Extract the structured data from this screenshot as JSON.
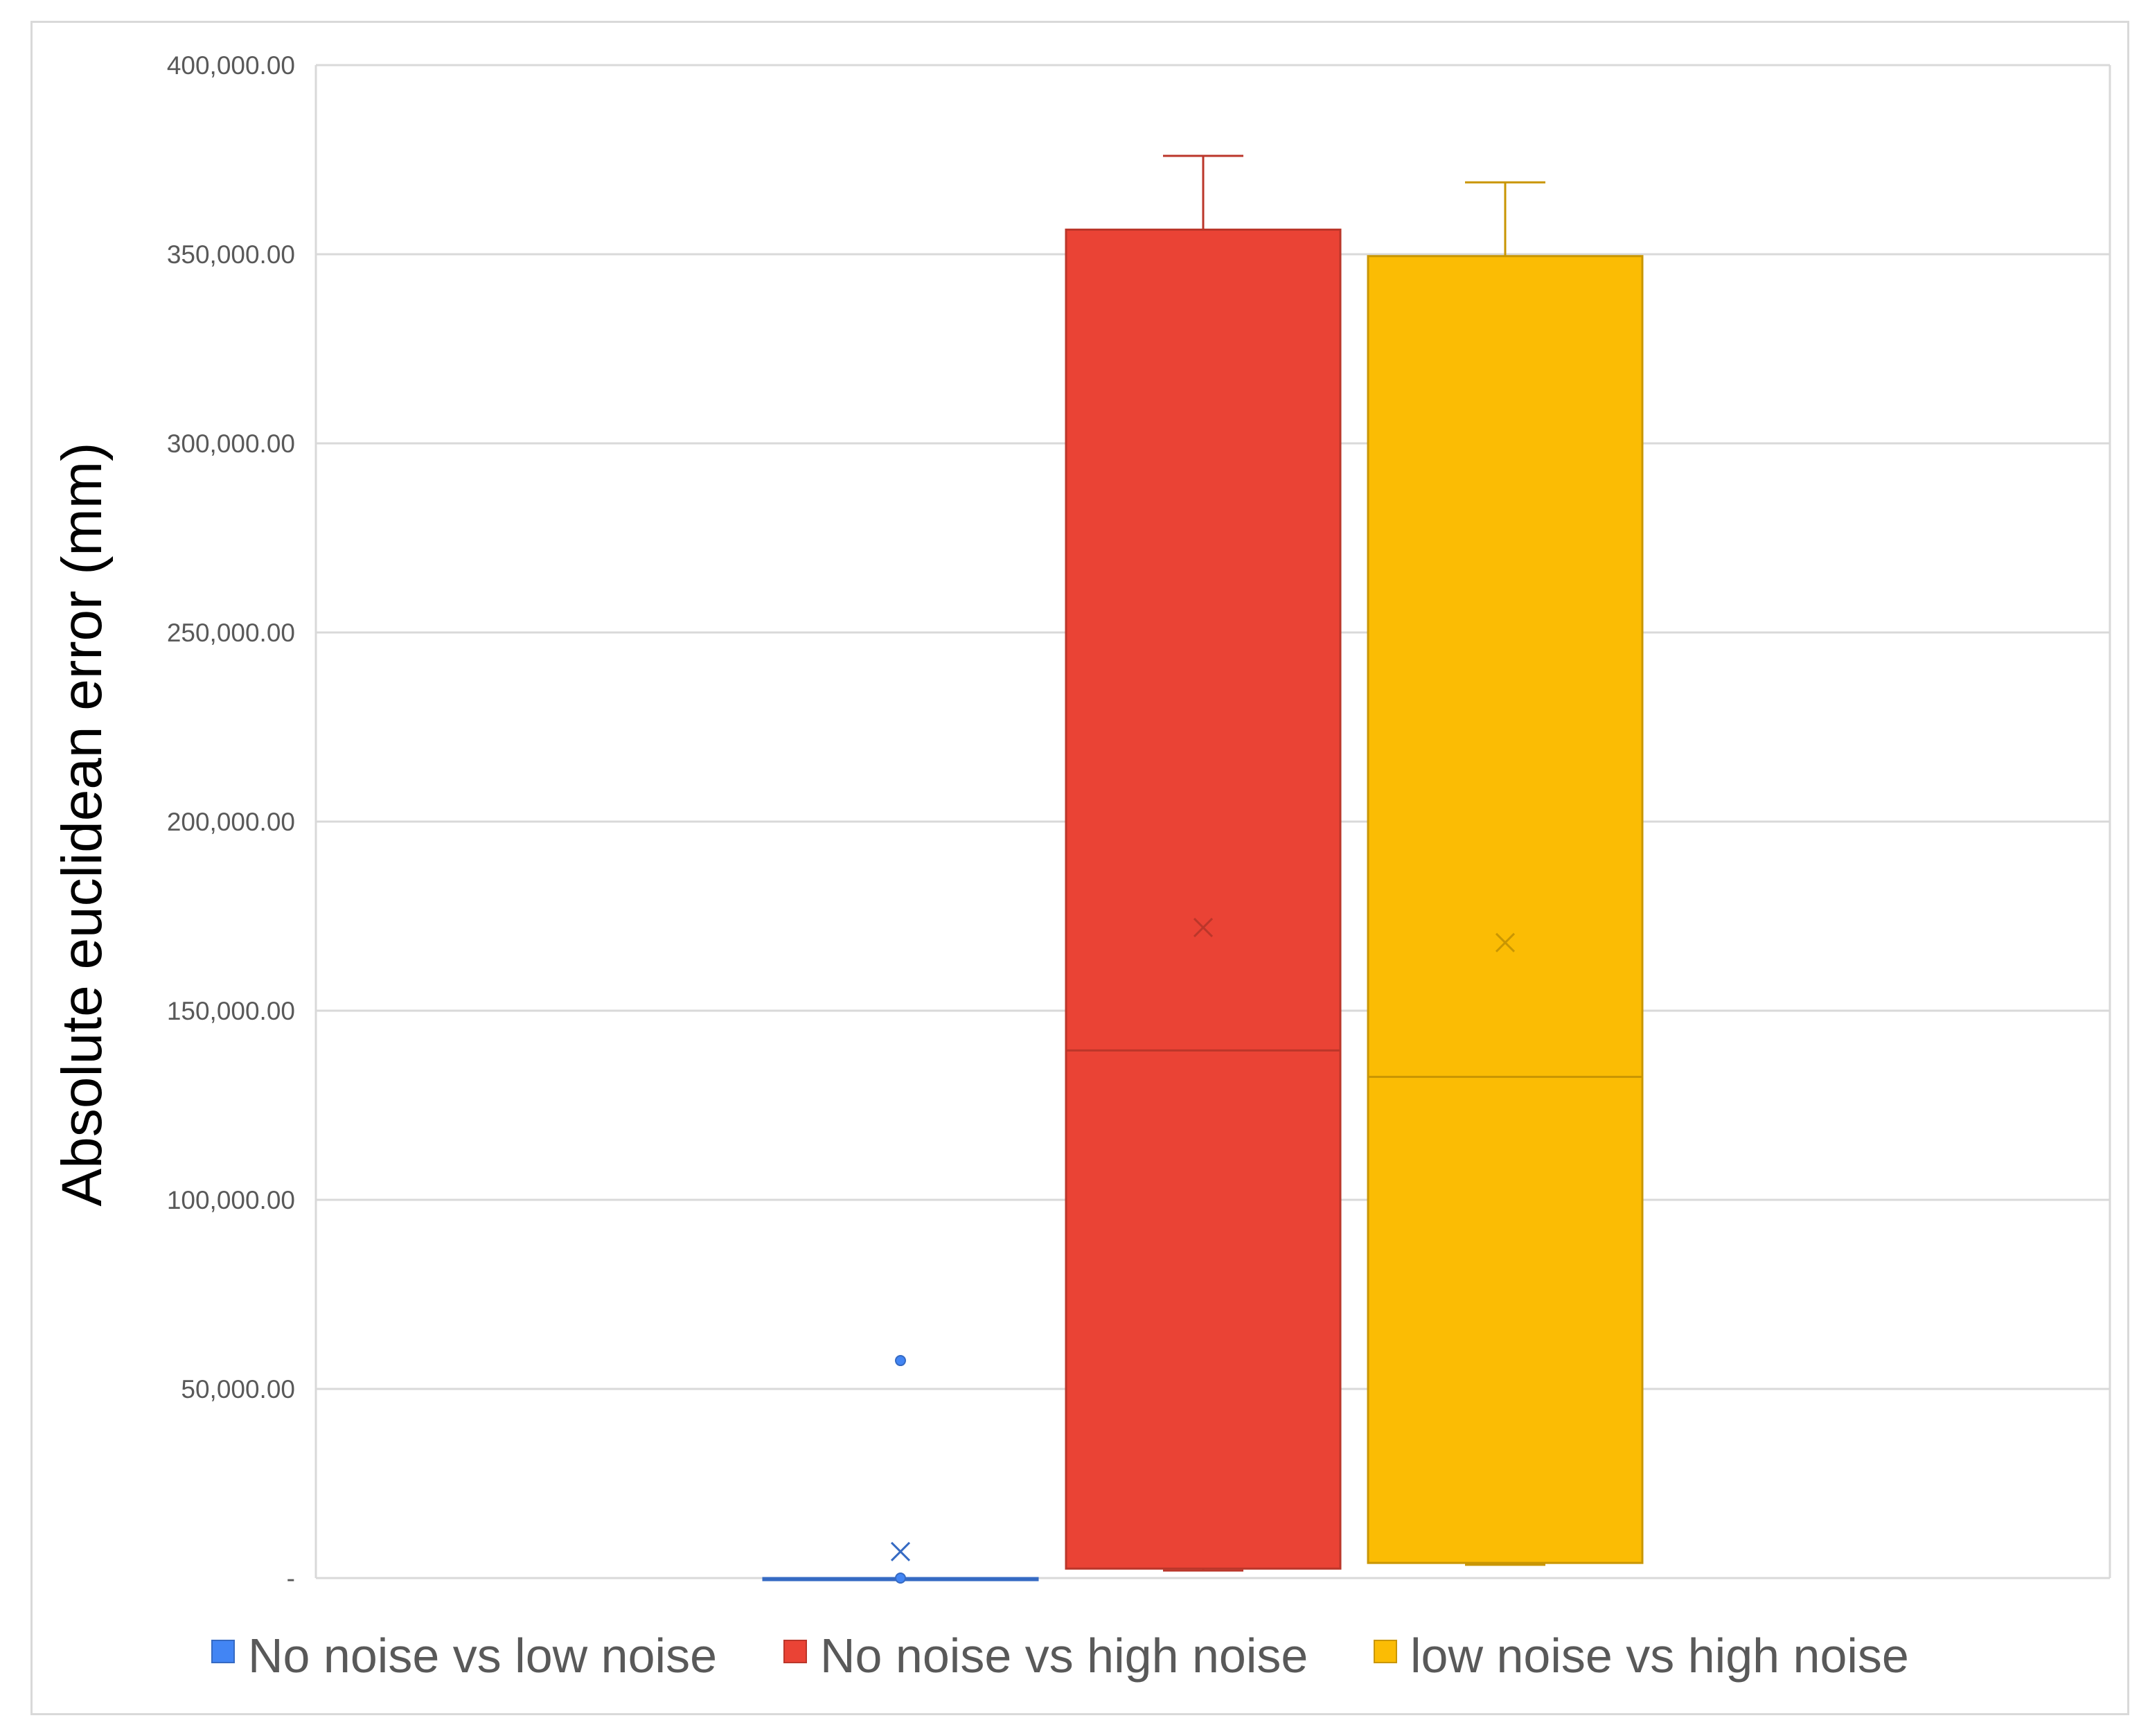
{
  "chart_data": {
    "type": "box",
    "ylabel": "Absolute euclidean error (mm)",
    "ylim": [
      0,
      400000
    ],
    "yticks": [
      0,
      50000,
      100000,
      150000,
      200000,
      250000,
      300000,
      350000,
      400000
    ],
    "ytick_labels": [
      "-",
      "50,000.00",
      "100,000.00",
      "150,000.00",
      "200,000.00",
      "250,000.00",
      "300,000.00",
      "350,000.00",
      "400,000.00"
    ],
    "grid": true,
    "legend_position": "bottom",
    "series": [
      {
        "name": "No noise vs low noise",
        "color": "#4285F4",
        "min": 0,
        "q1": 0,
        "median": 0,
        "q3": 0,
        "max": 0,
        "mean": 7000,
        "outliers": [
          57500
        ]
      },
      {
        "name": "No noise vs high noise",
        "color": "#EA4335",
        "min": 2000,
        "q1": 2500,
        "median": 139500,
        "q3": 356500,
        "max": 376000,
        "mean": 172000,
        "outliers": []
      },
      {
        "name": "low noise vs high noise",
        "color": "#FBBC04",
        "min": 3500,
        "q1": 4000,
        "median": 132500,
        "q3": 349500,
        "max": 369000,
        "mean": 168000,
        "outliers": []
      }
    ]
  }
}
